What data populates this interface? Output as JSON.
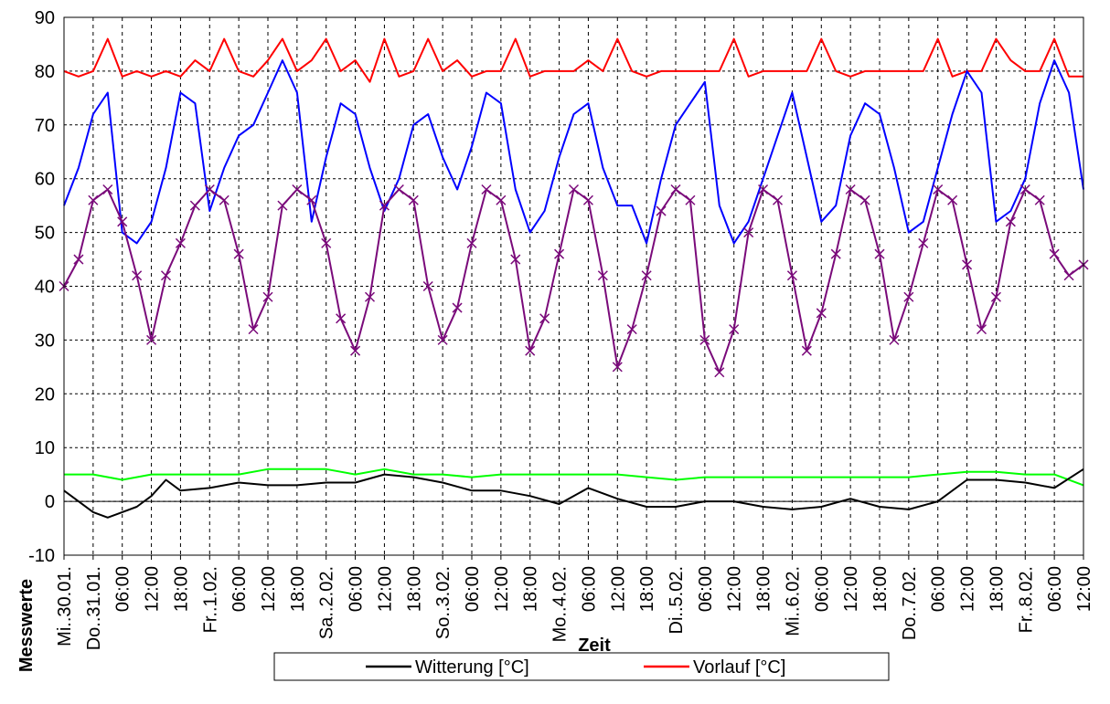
{
  "chart_data": {
    "type": "line",
    "xlabel": "Zeit",
    "ylabel": "Messwerte",
    "ylim": [
      -10,
      90
    ],
    "yticks": [
      -10,
      0,
      10,
      20,
      30,
      40,
      50,
      60,
      70,
      80,
      90
    ],
    "grid": true,
    "legend_position": "bottom",
    "x_tick_labels": [
      "Mi..30.01.",
      "Do..31.01.",
      "06:00",
      "12:00",
      "18:00",
      "Fr..1.02.",
      "06:00",
      "12:00",
      "18:00",
      "Sa..2.02.",
      "06:00",
      "12:00",
      "18:00",
      "So..3.02.",
      "06:00",
      "12:00",
      "18:00",
      "Mo..4.02.",
      "06:00",
      "12:00",
      "18:00",
      "Di..5.02.",
      "06:00",
      "12:00",
      "18:00",
      "Mi..6.02.",
      "06:00",
      "12:00",
      "18:00",
      "Do..7.02.",
      "06:00",
      "12:00",
      "18:00",
      "Fr..8.02.",
      "06:00",
      "12:00"
    ],
    "x_range_hours": [
      0,
      210
    ],
    "series": [
      {
        "name": "Witterung [°C]",
        "color": "#000000",
        "x_hours": [
          0,
          3,
          6,
          9,
          12,
          15,
          18,
          21,
          24,
          30,
          36,
          42,
          48,
          54,
          60,
          66,
          72,
          78,
          84,
          90,
          96,
          102,
          108,
          114,
          120,
          126,
          132,
          138,
          144,
          150,
          156,
          162,
          168,
          174,
          180,
          186,
          192,
          198,
          204,
          210
        ],
        "values": [
          2,
          0,
          -2,
          -3,
          -2,
          -1,
          1,
          4,
          2,
          2.5,
          3.5,
          3,
          3,
          3.5,
          3.5,
          5,
          4.5,
          3.5,
          2,
          2,
          1,
          -0.5,
          2.5,
          0.5,
          -1,
          -1,
          0,
          0,
          -1,
          -1.5,
          -1,
          0.5,
          -1,
          -1.5,
          0,
          4,
          4,
          3.5,
          2.5,
          6
        ]
      },
      {
        "name": "Vorlauf [°C]",
        "color": "#ff0000",
        "x_hours": [
          0,
          3,
          6,
          9,
          12,
          15,
          18,
          21,
          24,
          27,
          30,
          33,
          36,
          39,
          42,
          45,
          48,
          51,
          54,
          57,
          60,
          63,
          66,
          69,
          72,
          75,
          78,
          81,
          84,
          87,
          90,
          93,
          96,
          99,
          102,
          105,
          108,
          111,
          114,
          117,
          120,
          123,
          126,
          129,
          132,
          135,
          138,
          141,
          144,
          147,
          150,
          153,
          156,
          159,
          162,
          165,
          168,
          171,
          174,
          177,
          180,
          183,
          186,
          189,
          192,
          195,
          198,
          201,
          204,
          207,
          210
        ],
        "values": [
          80,
          79,
          80,
          86,
          79,
          80,
          79,
          80,
          79,
          82,
          80,
          86,
          80,
          79,
          82,
          86,
          80,
          82,
          86,
          80,
          82,
          78,
          86,
          79,
          80,
          86,
          80,
          82,
          79,
          80,
          80,
          86,
          79,
          80,
          80,
          80,
          82,
          80,
          86,
          80,
          79,
          80,
          80,
          80,
          80,
          80,
          86,
          79,
          80,
          80,
          80,
          80,
          86,
          80,
          79,
          80,
          80,
          80,
          80,
          80,
          86,
          79,
          80,
          80,
          86,
          82,
          80,
          80,
          86,
          79,
          79
        ]
      },
      {
        "name": "",
        "color": "#0000ff",
        "x_hours": [
          0,
          3,
          6,
          9,
          12,
          15,
          18,
          21,
          24,
          27,
          30,
          33,
          36,
          39,
          42,
          45,
          48,
          51,
          54,
          57,
          60,
          63,
          66,
          69,
          72,
          75,
          78,
          81,
          84,
          87,
          90,
          93,
          96,
          99,
          102,
          105,
          108,
          111,
          114,
          117,
          120,
          123,
          126,
          129,
          132,
          135,
          138,
          141,
          144,
          147,
          150,
          153,
          156,
          159,
          162,
          165,
          168,
          171,
          174,
          177,
          180,
          183,
          186,
          189,
          192,
          195,
          198,
          201,
          204,
          207,
          210
        ],
        "values": [
          55,
          62,
          72,
          76,
          50,
          48,
          52,
          62,
          76,
          74,
          54,
          62,
          68,
          70,
          76,
          82,
          76,
          52,
          64,
          74,
          72,
          62,
          54,
          60,
          70,
          72,
          64,
          58,
          66,
          76,
          74,
          58,
          50,
          54,
          64,
          72,
          74,
          62,
          55,
          55,
          48,
          60,
          70,
          74,
          78,
          55,
          48,
          52,
          60,
          68,
          76,
          64,
          52,
          55,
          68,
          74,
          72,
          62,
          50,
          52,
          62,
          72,
          80,
          76,
          52,
          54,
          60,
          74,
          82,
          76,
          58
        ]
      },
      {
        "name": "",
        "color": "#7a0a7a",
        "x_hours": [
          0,
          3,
          6,
          9,
          12,
          15,
          18,
          21,
          24,
          27,
          30,
          33,
          36,
          39,
          42,
          45,
          48,
          51,
          54,
          57,
          60,
          63,
          66,
          69,
          72,
          75,
          78,
          81,
          84,
          87,
          90,
          93,
          96,
          99,
          102,
          105,
          108,
          111,
          114,
          117,
          120,
          123,
          126,
          129,
          132,
          135,
          138,
          141,
          144,
          147,
          150,
          153,
          156,
          159,
          162,
          165,
          168,
          171,
          174,
          177,
          180,
          183,
          186,
          189,
          192,
          195,
          198,
          201,
          204,
          207,
          210
        ],
        "values": [
          40,
          45,
          56,
          58,
          52,
          42,
          30,
          42,
          48,
          55,
          58,
          56,
          46,
          32,
          38,
          55,
          58,
          56,
          48,
          34,
          28,
          38,
          55,
          58,
          56,
          40,
          30,
          36,
          48,
          58,
          56,
          45,
          28,
          34,
          46,
          58,
          56,
          42,
          25,
          32,
          42,
          54,
          58,
          56,
          30,
          24,
          32,
          50,
          58,
          56,
          42,
          28,
          35,
          46,
          58,
          56,
          46,
          30,
          38,
          48,
          58,
          56,
          44,
          32,
          38,
          52,
          58,
          56,
          46,
          42,
          44
        ]
      },
      {
        "name": "",
        "color": "#00ff00",
        "x_hours": [
          0,
          6,
          12,
          18,
          24,
          30,
          36,
          42,
          48,
          54,
          60,
          66,
          72,
          78,
          84,
          90,
          96,
          102,
          108,
          114,
          120,
          126,
          132,
          138,
          144,
          150,
          156,
          162,
          168,
          174,
          180,
          186,
          192,
          198,
          204,
          210
        ],
        "values": [
          5,
          5,
          4,
          5,
          5,
          5,
          5,
          6,
          6,
          6,
          5,
          6,
          5,
          5,
          4.5,
          5,
          5,
          5,
          5,
          5,
          4.5,
          4,
          4.5,
          4.5,
          4.5,
          4.5,
          4.5,
          4.5,
          4.5,
          4.5,
          5,
          5.5,
          5.5,
          5,
          5,
          3
        ]
      }
    ]
  }
}
